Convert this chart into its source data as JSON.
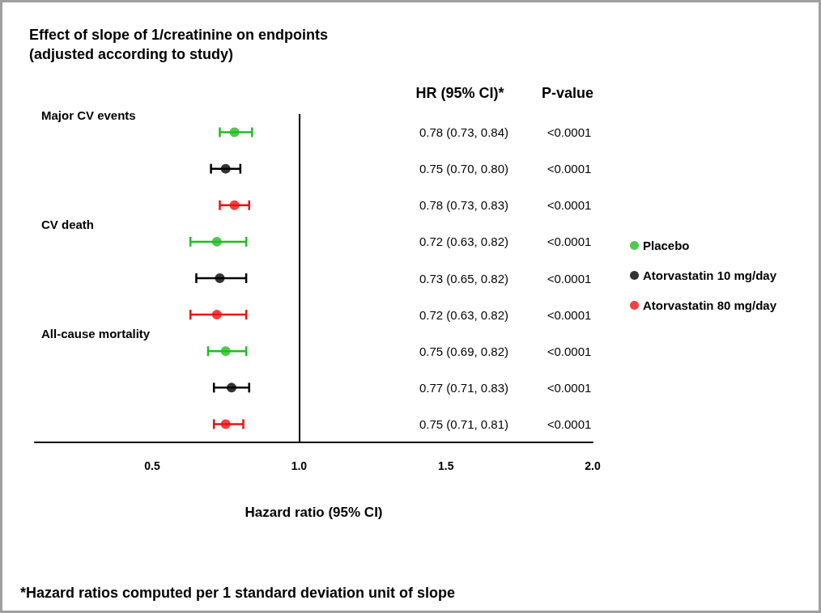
{
  "chart_data": {
    "type": "scatter",
    "orientation": "horizontal",
    "title": "Effect of slope of 1/creatinine on endpoints",
    "subtitle": "(adjusted according to study)",
    "xlabel": "Hazard ratio (95% CI)",
    "categories": [
      "Major CV events",
      null,
      null,
      "CV death",
      null,
      null,
      "All-cause mortality",
      null,
      null
    ],
    "series": [
      {
        "name": "Placebo",
        "color": "#22bb22",
        "values": [
          0.78,
          null,
          null,
          0.72,
          null,
          null,
          0.75,
          null,
          null
        ],
        "errors": [
          [
            0.73,
            0.84
          ],
          null,
          null,
          [
            0.63,
            0.82
          ],
          null,
          null,
          [
            0.69,
            0.82
          ],
          null,
          null
        ]
      },
      {
        "name": "Atorvastatin 10 mg/day",
        "color": "#000000",
        "values": [
          null,
          0.75,
          null,
          null,
          0.73,
          null,
          null,
          0.77,
          null
        ],
        "errors": [
          null,
          [
            0.7,
            0.8
          ],
          null,
          null,
          [
            0.65,
            0.82
          ],
          null,
          null,
          [
            0.71,
            0.83
          ],
          null
        ]
      },
      {
        "name": "Atorvastatin 80 mg/day",
        "color": "#ee1111",
        "values": [
          null,
          null,
          0.78,
          null,
          null,
          0.72,
          null,
          null,
          0.75
        ],
        "errors": [
          null,
          null,
          [
            0.73,
            0.83
          ],
          null,
          null,
          [
            0.63,
            0.82
          ],
          null,
          null,
          [
            0.71,
            0.81
          ]
        ]
      }
    ],
    "xlim": [
      0.1,
      2.0
    ],
    "xticks": [
      0.5,
      {
        "value": 1,
        "label": "1.0"
      },
      1.5,
      {
        "value": 2,
        "label": "2.0"
      }
    ],
    "ref_lines": [
      {
        "axis": "x",
        "value": 1,
        "color": "#000000",
        "line_style": "solid"
      }
    ],
    "annotations": [
      "HR (95% CI)*",
      "P-value",
      "0.78 (0.73, 0.84)",
      "<0.0001",
      "0.75 (0.70, 0.80)",
      "<0.0001",
      "0.78 (0.73, 0.83)",
      "<0.0001",
      "0.72 (0.63, 0.82)",
      "<0.0001",
      "0.73 (0.65, 0.82)",
      "<0.0001",
      "0.72 (0.63, 0.82)",
      "<0.0001",
      "0.75 (0.69, 0.82)",
      "<0.0001",
      "0.77 (0.71, 0.83)",
      "<0.0001",
      "0.75 (0.71, 0.81)",
      "<0.0001",
      "*Hazard ratios computed per 1 standard deviation unit of slope"
    ],
    "marker": "circle",
    "legend": "right",
    "grid": false
  }
}
